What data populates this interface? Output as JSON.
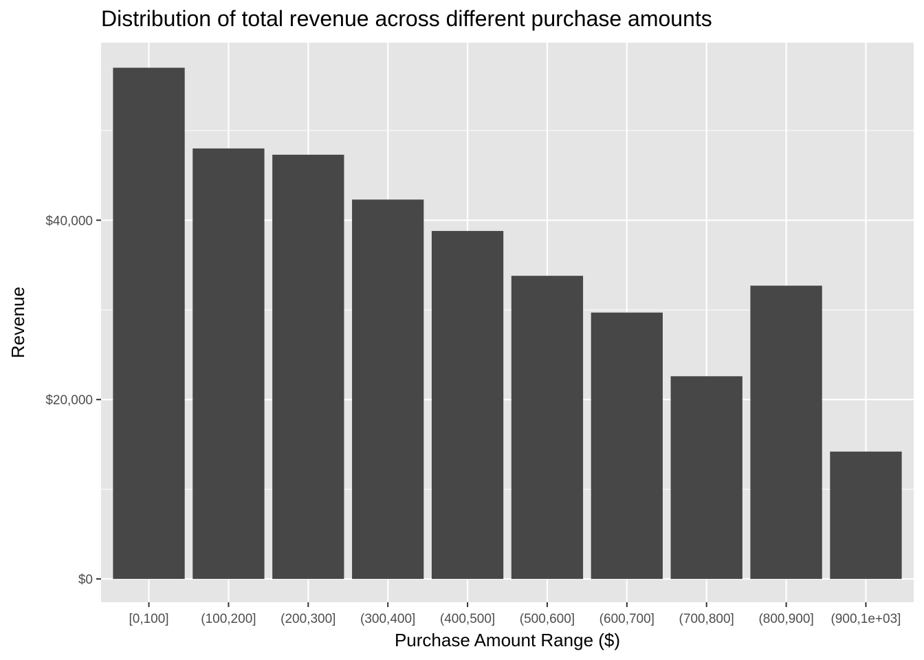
{
  "chart_data": {
    "type": "bar",
    "title": "Distribution of total revenue across different purchase amounts",
    "xlabel": "Purchase Amount Range ($)",
    "ylabel": "Revenue",
    "categories": [
      "[0,100]",
      "(100,200]",
      "(200,300]",
      "(300,400]",
      "(400,500]",
      "(500,600]",
      "(600,700]",
      "(700,800]",
      "(800,900]",
      "(900,1e+03]"
    ],
    "values": [
      57000,
      48000,
      47300,
      42300,
      38800,
      33800,
      29700,
      22600,
      32700,
      14200
    ],
    "ylim": [
      -2600,
      59800
    ],
    "yticks": [
      0,
      20000,
      40000
    ],
    "ytick_labels": [
      "$0",
      "$20,000",
      "$40,000"
    ],
    "grid": true,
    "colors": {
      "bar": "#474747",
      "panel": "#e5e5e5",
      "grid": "#ffffff",
      "tick": "#333333"
    }
  }
}
